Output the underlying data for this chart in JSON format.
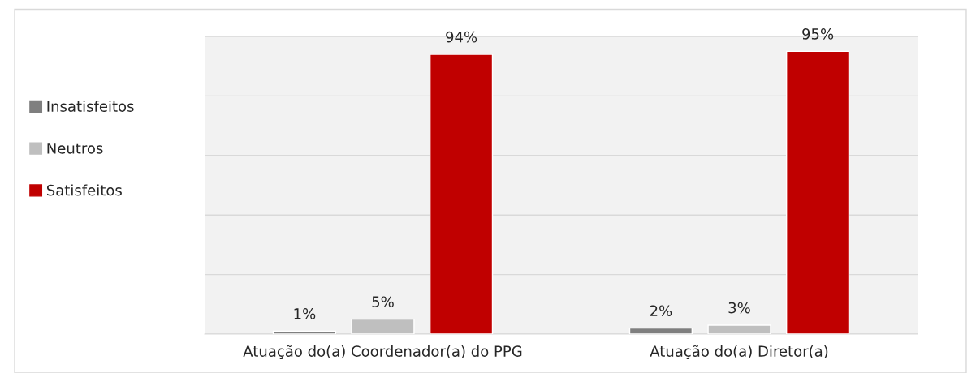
{
  "chart_data": {
    "type": "bar",
    "categories": [
      "Atuação do(a) Coordenador(a) do PPG",
      "Atuação do(a) Diretor(a)"
    ],
    "series": [
      {
        "name": "Insatisfeitos",
        "color": "#7f7f7f",
        "values": [
          1,
          2
        ],
        "value_labels": [
          "1%",
          "2%"
        ]
      },
      {
        "name": "Neutros",
        "color": "#bfbfbf",
        "values": [
          5,
          3
        ],
        "value_labels": [
          "5%",
          "3%"
        ]
      },
      {
        "name": "Satisfeitos",
        "color": "#c00000",
        "values": [
          94,
          95
        ],
        "value_labels": [
          "94%",
          "95%"
        ]
      }
    ],
    "ylim": [
      0,
      100
    ],
    "yticks": [
      {
        "value": 0,
        "label": null
      },
      {
        "value": 20,
        "label": null
      },
      {
        "value": 40,
        "label": null
      },
      {
        "value": 60,
        "label": null
      },
      {
        "value": 80,
        "label": null
      },
      {
        "value": 100,
        "label": null
      }
    ],
    "grid": "y",
    "legend": "left",
    "tick_labels": "x"
  }
}
